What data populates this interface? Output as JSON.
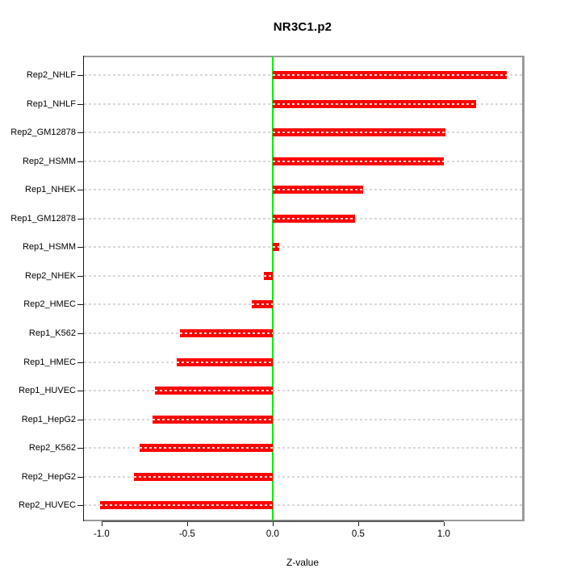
{
  "title": "NR3C1.p2",
  "chart_data": {
    "type": "bar",
    "orientation": "horizontal",
    "title": "NR3C1.p2",
    "xlabel": "Z-value",
    "ylabel": "",
    "categories": [
      "Rep2_NHLF",
      "Rep1_NHLF",
      "Rep2_GM12878",
      "Rep2_HSMM",
      "Rep1_NHEK",
      "Rep1_GM12878",
      "Rep1_HSMM",
      "Rep2_NHEK",
      "Rep2_HMEC",
      "Rep1_K562",
      "Rep1_HMEC",
      "Rep1_HUVEC",
      "Rep1_HepG2",
      "Rep2_K562",
      "Rep2_HepG2",
      "Rep2_HUVEC"
    ],
    "values": [
      1.37,
      1.19,
      1.01,
      1.0,
      0.53,
      0.48,
      0.04,
      -0.05,
      -0.12,
      -0.54,
      -0.56,
      -0.69,
      -0.7,
      -0.78,
      -0.81,
      -1.01
    ],
    "x_ticks": [
      -1.0,
      -0.5,
      0.0,
      0.5,
      1.0
    ],
    "x_tick_labels": [
      "-1.0",
      "-0.5",
      "0.0",
      "0.5",
      "1.0"
    ],
    "xlim": [
      -1.108,
      1.458
    ],
    "grid": true,
    "legend_position": "none",
    "bar_color": "#ff0000",
    "zero_line_color": "#00ee00",
    "grid_color": "#d8d8d8",
    "box_color": "#9a9a9a",
    "axis_color": "#1a1a1a"
  }
}
